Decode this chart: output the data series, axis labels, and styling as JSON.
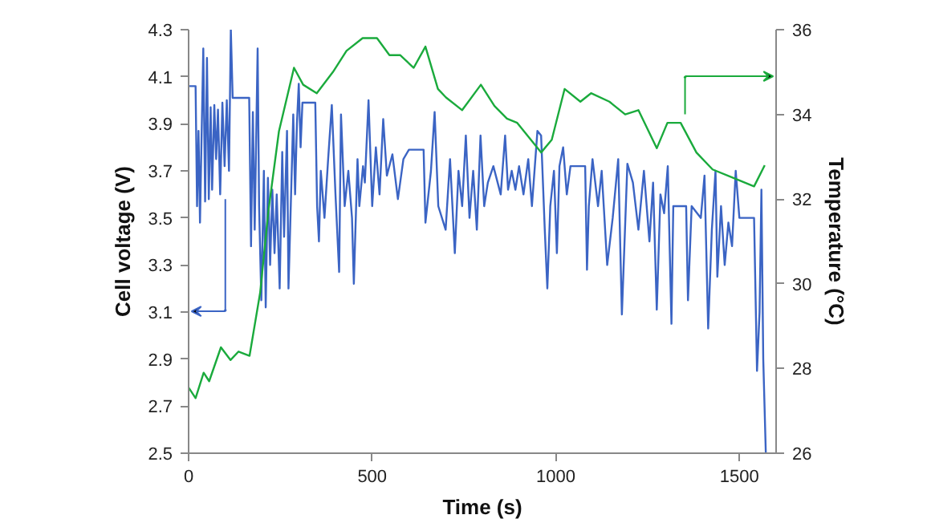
{
  "chart_data": {
    "type": "line",
    "xlabel": "Time (s)",
    "ylabel": "Cell voltage (V)",
    "y2label": "Temperature (°C)",
    "xlim": [
      0,
      1600
    ],
    "xticks": [
      0,
      500,
      1000,
      1500
    ],
    "ylim": [
      2.5,
      4.3
    ],
    "yticks": [
      {
        "value": 2.5,
        "label": "2.5"
      },
      {
        "value": 2.7,
        "label": "2.7"
      },
      {
        "value": 2.9,
        "label": "2.9"
      },
      {
        "value": 3.1,
        "label": "3.1"
      },
      {
        "value": 3.3,
        "label": "3.3"
      },
      {
        "value": 3.5,
        "label": "3.5"
      },
      {
        "value": 3.7,
        "label": "3.7"
      },
      {
        "value": 3.9,
        "label": "3.9"
      },
      {
        "value": 4.1,
        "label": "4.1"
      },
      {
        "value": 4.3,
        "label": "4.3"
      }
    ],
    "y2lim": [
      26,
      36
    ],
    "y2ticks": [
      26,
      28,
      30,
      32,
      34,
      36
    ],
    "grid": false,
    "marker": "none",
    "line_style": "solid",
    "series": [
      {
        "color": "#3b64c4",
        "x": [
          0,
          19,
          23,
          27,
          31,
          36,
          40,
          45,
          50,
          55,
          60,
          64,
          70,
          75,
          80,
          86,
          92,
          98,
          104,
          110,
          115,
          120,
          165,
          170,
          175,
          180,
          188,
          192,
          198,
          205,
          210,
          216,
          222,
          228,
          234,
          240,
          248,
          255,
          260,
          268,
          272,
          280,
          285,
          290,
          295,
          300,
          305,
          310,
          345,
          350,
          355,
          360,
          370,
          380,
          390,
          400,
          410,
          415,
          425,
          435,
          445,
          450,
          460,
          465,
          475,
          480,
          490,
          500,
          510,
          520,
          530,
          540,
          555,
          570,
          585,
          600,
          640,
          645,
          660,
          670,
          680,
          700,
          712,
          725,
          735,
          745,
          755,
          765,
          775,
          785,
          795,
          805,
          815,
          830,
          850,
          862,
          870,
          880,
          890,
          900,
          912,
          925,
          935,
          950,
          960,
          970,
          977,
          985,
          995,
          1003,
          1010,
          1020,
          1030,
          1040,
          1080,
          1085,
          1090,
          1100,
          1115,
          1125,
          1140,
          1155,
          1170,
          1180,
          1195,
          1210,
          1225,
          1240,
          1255,
          1265,
          1275,
          1285,
          1295,
          1305,
          1315,
          1320,
          1355,
          1360,
          1370,
          1395,
          1405,
          1415,
          1425,
          1435,
          1440,
          1450,
          1460,
          1470,
          1480,
          1490,
          1500,
          1540,
          1548,
          1555,
          1560,
          1565,
          1572
        ],
        "values": [
          4.06,
          4.06,
          3.55,
          3.87,
          3.48,
          3.9,
          4.22,
          3.57,
          4.18,
          3.58,
          3.97,
          3.62,
          3.98,
          3.75,
          3.96,
          3.6,
          3.99,
          3.72,
          4.0,
          3.7,
          4.3,
          4.01,
          4.01,
          3.38,
          3.95,
          3.45,
          4.22,
          3.55,
          3.15,
          3.7,
          3.12,
          3.67,
          3.3,
          3.62,
          3.35,
          3.6,
          3.2,
          3.78,
          3.42,
          3.87,
          3.2,
          3.65,
          3.94,
          3.6,
          3.9,
          4.07,
          3.8,
          3.99,
          3.99,
          3.55,
          3.4,
          3.7,
          3.5,
          3.75,
          3.98,
          3.6,
          3.27,
          3.94,
          3.55,
          3.7,
          3.5,
          3.22,
          3.75,
          3.55,
          3.72,
          3.65,
          4.0,
          3.55,
          3.8,
          3.6,
          3.92,
          3.68,
          3.77,
          3.58,
          3.75,
          3.79,
          3.79,
          3.48,
          3.7,
          3.95,
          3.55,
          3.45,
          3.75,
          3.35,
          3.7,
          3.55,
          3.85,
          3.5,
          3.7,
          3.45,
          3.85,
          3.55,
          3.65,
          3.72,
          3.6,
          3.85,
          3.62,
          3.7,
          3.62,
          3.72,
          3.6,
          3.75,
          3.55,
          3.87,
          3.85,
          3.45,
          3.2,
          3.55,
          3.7,
          3.35,
          3.72,
          3.8,
          3.6,
          3.72,
          3.72,
          3.28,
          3.55,
          3.75,
          3.55,
          3.7,
          3.3,
          3.5,
          3.75,
          3.09,
          3.73,
          3.65,
          3.45,
          3.7,
          3.4,
          3.65,
          3.11,
          3.6,
          3.52,
          3.72,
          3.05,
          3.55,
          3.55,
          3.15,
          3.55,
          3.5,
          3.68,
          3.03,
          3.45,
          3.7,
          3.25,
          3.55,
          3.3,
          3.48,
          3.38,
          3.7,
          3.5,
          3.5,
          2.85,
          3.1,
          3.62,
          2.9,
          2.5
        ]
      },
      {
        "color": "#1aaa3c",
        "axis": "y2",
        "x": [
          0,
          19,
          41,
          56,
          88,
          114,
          136,
          166,
          195,
          217,
          246,
          287,
          312,
          349,
          393,
          430,
          474,
          513,
          547,
          576,
          613,
          645,
          679,
          701,
          745,
          796,
          833,
          867,
          895,
          960,
          989,
          1024,
          1067,
          1096,
          1146,
          1189,
          1225,
          1275,
          1304,
          1340,
          1383,
          1427,
          1484,
          1540,
          1569
        ],
        "values": [
          27.55,
          27.3,
          27.9,
          27.7,
          28.5,
          28.2,
          28.4,
          28.3,
          29.8,
          31.7,
          33.6,
          35.1,
          34.7,
          34.5,
          35.0,
          35.5,
          35.8,
          35.8,
          35.4,
          35.4,
          35.1,
          35.6,
          34.6,
          34.4,
          34.1,
          34.7,
          34.2,
          33.9,
          33.8,
          33.1,
          33.4,
          34.6,
          34.3,
          34.5,
          34.3,
          34.0,
          34.1,
          33.2,
          33.8,
          33.8,
          33.1,
          32.7,
          32.5,
          32.3,
          32.8
        ]
      }
    ]
  }
}
